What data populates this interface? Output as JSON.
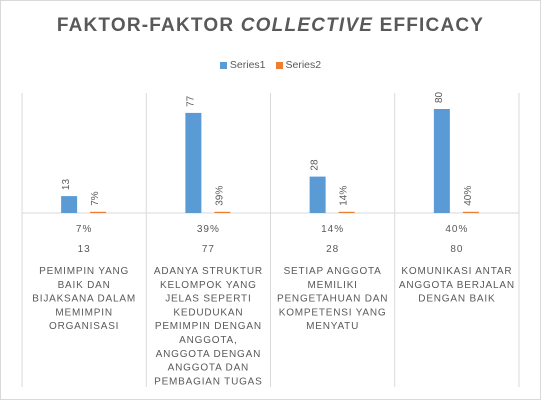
{
  "chart_data": {
    "type": "bar",
    "title": {
      "part1": "FAKTOR-FAKTOR ",
      "part2": "COLLECTIVE",
      "part3": " EFFICACY"
    },
    "categories": [
      "PEMIMPIN YANG BAIK DAN BIJAKSANA DALAM MEMIMPIN ORGANISASI",
      "ADANYA STRUKTUR KELOMPOK YANG JELAS SEPERTI KEDUDUKAN PEMIMPIN DENGAN ANGGOTA, ANGGOTA DENGAN ANGGOTA DAN PEMBAGIAN TUGAS",
      "SETIAP ANGGOTA MEMILIKI PENGETAHUAN DAN KOMPETENSI YANG MENYATU",
      "KOMUNIKASI ANTAR ANGGOTA BERJALAN DENGAN BAIK"
    ],
    "category_lines": [
      [
        "PEMIMPIN YANG",
        "BAIK DAN",
        "BIJAKSANA DALAM",
        "MEMIMPIN",
        "ORGANISASI"
      ],
      [
        "ADANYA STRUKTUR",
        "KELOMPOK YANG",
        "JELAS SEPERTI",
        "KEDUDUKAN",
        "PEMIMPIN DENGAN",
        "ANGGOTA,",
        "ANGGOTA DENGAN",
        "ANGGOTA DAN",
        "PEMBAGIAN TUGAS"
      ],
      [
        "SETIAP ANGGOTA",
        "MEMILIKI",
        "PENGETAHUAN DAN",
        "KOMPETENSI YANG",
        "MENYATU"
      ],
      [
        "KOMUNIKASI ANTAR",
        "ANGGOTA BERJALAN",
        "DENGAN BAIK"
      ]
    ],
    "series": [
      {
        "name": "Series1",
        "values": [
          13,
          77,
          28,
          80
        ],
        "labels": [
          "13",
          "77",
          "28",
          "80"
        ],
        "color": "#5b9bd5"
      },
      {
        "name": "Series2",
        "values": [
          0.07,
          0.39,
          0.14,
          0.4
        ],
        "labels": [
          "7%",
          "39%",
          "14%",
          "40%"
        ],
        "color": "#ed7d31"
      }
    ],
    "ylim": [
      0,
      90
    ],
    "grid": false,
    "legend_position": "top-center"
  }
}
